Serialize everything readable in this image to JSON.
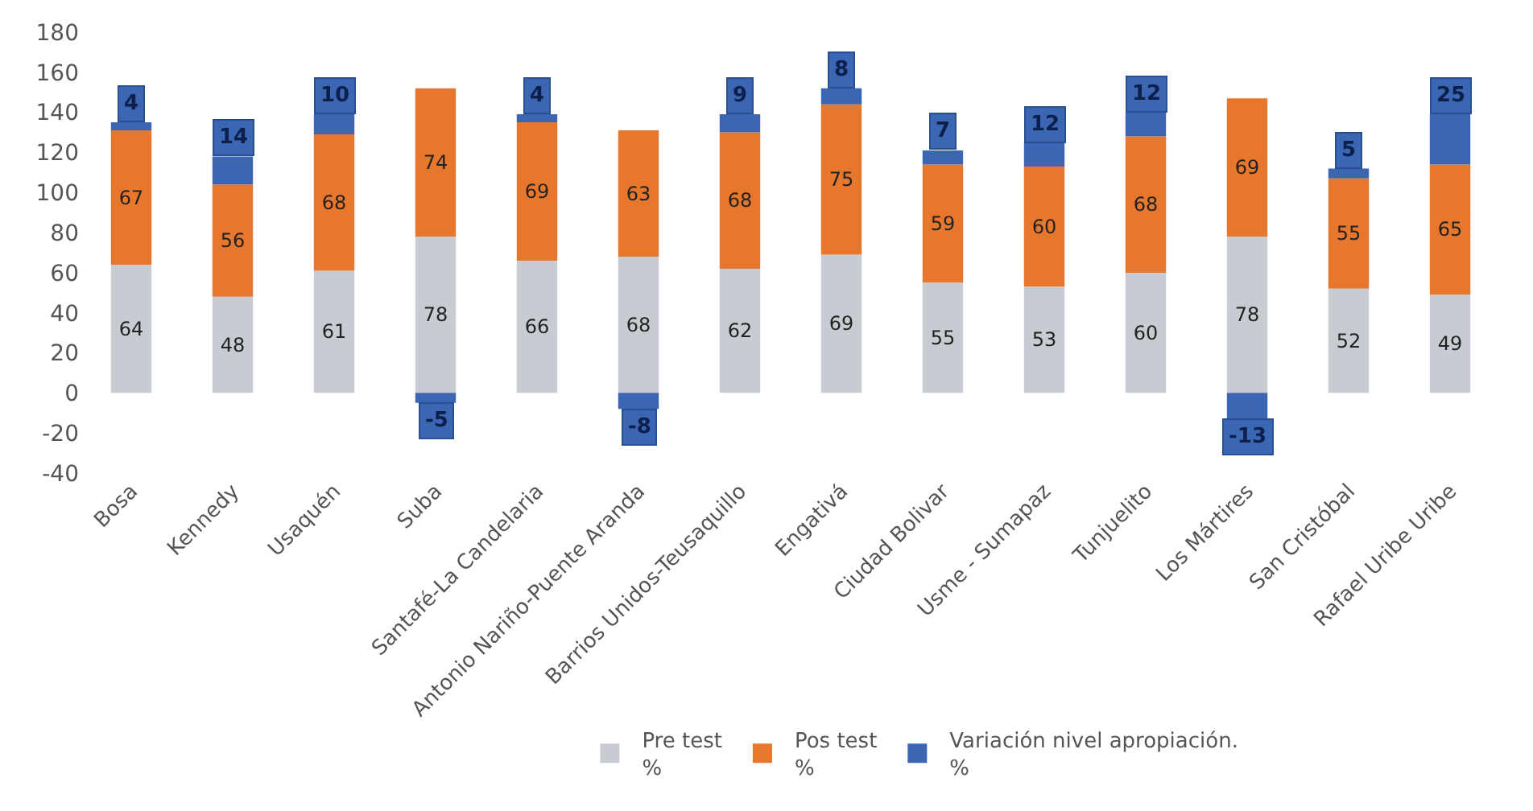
{
  "chart_data": {
    "type": "bar",
    "stacked": true,
    "categories": [
      "Bosa",
      "Kennedy",
      "Usaquén",
      "Suba",
      "Santafé-La Candelaria",
      "Antonio Nariño-Puente Aranda",
      "Barrios Unidos-Teusaquillo",
      "Engativá",
      "Ciudad Bolivar",
      "Usme - Sumapaz",
      "Tunjuelito",
      "Los Mártires",
      "San Cristóbal",
      "Rafael Uribe Uribe"
    ],
    "series": [
      {
        "name": "Pre test\n%",
        "color": "#c8ccd2",
        "values": [
          64,
          48,
          61,
          78,
          66,
          68,
          62,
          69,
          55,
          53,
          60,
          78,
          52,
          49
        ]
      },
      {
        "name": "Pos test\n%",
        "color": "#e8772e",
        "values": [
          67,
          56,
          68,
          74,
          69,
          63,
          68,
          75,
          59,
          60,
          68,
          69,
          55,
          65
        ]
      },
      {
        "name": "Variación nivel apropiación.\n%",
        "color": "#3a66b4",
        "values": [
          4,
          14,
          10,
          -5,
          4,
          -8,
          9,
          8,
          7,
          12,
          12,
          -13,
          5,
          25
        ]
      }
    ],
    "ylim": [
      -40,
      180
    ],
    "yticks": [
      -40,
      -20,
      0,
      20,
      40,
      60,
      80,
      100,
      120,
      140,
      160,
      180
    ],
    "data_labels": true,
    "legend": "bottom"
  }
}
